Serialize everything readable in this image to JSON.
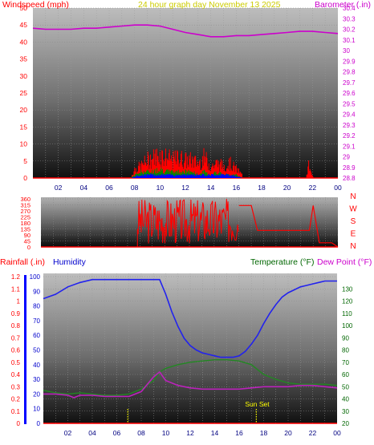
{
  "colors": {
    "windspeed": "#ff0000",
    "gust": "#cc0000",
    "wind_low": "#0000ff",
    "wind_mid": "#008800",
    "barometer": "#cc00cc",
    "rainfall": "#ff0000",
    "humidity": "#0000cc",
    "humidity_curve": "#2222ee",
    "temperature": "#006600",
    "temperature_curve": "#228822",
    "dewpoint": "#cc00cc",
    "dewpoint_curve": "#bb22bb",
    "direction": "#ff0000",
    "sunrise_marker": "#ffff00",
    "title_text": "#cccc00",
    "sunset_text": "#ffff00"
  },
  "chart_data": [
    {
      "type": "line",
      "title": "24 hour graph day   November 13 2025",
      "ylabel_left": "Windspeed (mph)",
      "ylabel_right": "Barometer (.in)",
      "x_ticks": [
        "02",
        "04",
        "06",
        "08",
        "10",
        "12",
        "14",
        "16",
        "18",
        "20",
        "22",
        "00"
      ],
      "ylim_left": [
        0,
        50
      ],
      "y_ticks_left": [
        "50",
        "45",
        "40",
        "35",
        "30",
        "25",
        "20",
        "15",
        "10",
        "5",
        "0"
      ],
      "ylim_right": [
        28.8,
        30.4
      ],
      "y_ticks_right": [
        "30.4",
        "30.3",
        "30.2",
        "30.1",
        "30",
        "29.9",
        "29.8",
        "29.7",
        "29.6",
        "29.5",
        "29.4",
        "29.3",
        "29.2",
        "29.1",
        "29",
        "28.9",
        "28.8"
      ],
      "grid": true,
      "series": [
        {
          "axis": "right",
          "x": [
            0,
            1,
            2,
            3,
            4,
            5,
            6,
            7,
            8,
            9,
            10,
            11,
            12,
            13,
            14,
            15,
            16,
            17,
            18,
            19,
            20,
            21,
            22,
            23,
            24
          ],
          "values": [
            30.21,
            30.2,
            30.2,
            30.2,
            30.21,
            30.21,
            30.22,
            30.23,
            30.24,
            30.24,
            30.23,
            30.2,
            30.17,
            30.15,
            30.13,
            30.13,
            30.14,
            30.14,
            30.15,
            30.16,
            30.17,
            30.18,
            30.18,
            30.17,
            30.16
          ]
        },
        {
          "x": [
            0,
            7.7,
            8.0,
            8.5,
            9.0,
            9.5,
            10.0,
            10.5,
            11.0,
            11.5,
            12.0,
            12.5,
            13.0,
            13.5,
            14.0,
            14.5,
            15.0,
            15.5,
            16.0,
            16.5,
            16.6,
            21.5,
            21.7,
            21.9,
            22.1,
            24
          ],
          "values": [
            0,
            0,
            3,
            4,
            6,
            7,
            8,
            7,
            6,
            7,
            6,
            6,
            5,
            7,
            4,
            5,
            4,
            5,
            3,
            1,
            0,
            0,
            4,
            2,
            0,
            0
          ]
        },
        {
          "x": [
            0,
            7.7,
            8.0,
            8.5,
            9.0,
            9.5,
            10.0,
            10.5,
            11.0,
            11.5,
            12.0,
            12.5,
            13.0,
            13.5,
            14.0,
            14.5,
            15.0,
            15.5,
            16.0,
            16.5,
            16.6,
            24
          ],
          "values": [
            0,
            0,
            1,
            2,
            2,
            2,
            3,
            2,
            2,
            2,
            2,
            2,
            1,
            2,
            1,
            2,
            1,
            1,
            1,
            0,
            0,
            0
          ]
        },
        {
          "x": [
            0,
            7.7,
            8.5,
            9.5,
            10.5,
            11.5,
            12.5,
            13.5,
            14.5,
            15.5,
            16.5,
            24
          ],
          "values": [
            0,
            0,
            1,
            1,
            1,
            1,
            1,
            1,
            1,
            1,
            0,
            0
          ]
        }
      ]
    },
    {
      "type": "line",
      "ylabel_right": "",
      "ylim_left": [
        0,
        360
      ],
      "y_ticks_left": [
        "360",
        "315",
        "270",
        "225",
        "180",
        "135",
        "90",
        "45",
        "0"
      ],
      "direction_labels": [
        "N",
        "W",
        "S",
        "E",
        "N"
      ],
      "series": [
        {
          "x": [
            0,
            7.8,
            16.0,
            17.0,
            17.5,
            21.7,
            22.0,
            22.5,
            23.5,
            24
          ],
          "values": [
            0,
            0,
            300,
            300,
            120,
            120,
            300,
            30,
            30,
            0
          ]
        }
      ],
      "band_start": 7.8,
      "band_end": 16.0
    },
    {
      "type": "line",
      "ylabel_left": "Rainfall (.in)",
      "ylabel_left2": "Humidity",
      "ylabel_right": "Temperature (°F)",
      "ylabel_right2": "Dew Point (°F)",
      "x_ticks": [
        "02",
        "04",
        "06",
        "08",
        "10",
        "12",
        "14",
        "16",
        "18",
        "20",
        "22",
        "00"
      ],
      "ylim_left": [
        0,
        1.2
      ],
      "y_ticks_left": [
        "1.2",
        "1.1",
        "1",
        "0.9",
        "0.8",
        "0.7",
        "0.6",
        "0.5",
        "0.4",
        "0.3",
        "0.2",
        "0.1",
        "0"
      ],
      "y_ticks_humidity": [
        "100",
        "90",
        "80",
        "70",
        "60",
        "50",
        "40",
        "30",
        "20",
        "10",
        "0"
      ],
      "ylim_right": [
        20,
        140
      ],
      "y_ticks_right": [
        "130",
        "120",
        "110",
        "100",
        "90",
        "80",
        "70",
        "60",
        "50",
        "40",
        "30",
        "20"
      ],
      "annotation": "Sun Set",
      "sunrise_x": 6.9,
      "sunset_x": 17.4,
      "grid": true,
      "series": [
        {
          "name": "Humidity",
          "axis": "humidity",
          "x": [
            0,
            1,
            2,
            3,
            4,
            5,
            6,
            7,
            8,
            9,
            9.5,
            10,
            10.5,
            11,
            11.5,
            12,
            12.5,
            13,
            13.5,
            14,
            14.5,
            15,
            15.5,
            16,
            16.5,
            17,
            17.5,
            18,
            18.5,
            19,
            19.5,
            20,
            20.5,
            21,
            21.5,
            22,
            22.5,
            23,
            24
          ],
          "values": [
            85,
            88,
            93,
            96,
            98,
            98,
            98,
            98,
            98,
            98,
            98,
            88,
            76,
            66,
            58,
            53,
            50,
            48,
            47,
            46,
            45,
            45,
            45,
            46,
            49,
            54,
            60,
            68,
            75,
            81,
            86,
            89,
            91,
            93,
            94,
            95,
            96,
            97,
            97
          ]
        },
        {
          "name": "Temperature (°F)",
          "axis": "right",
          "x": [
            0,
            1,
            2,
            3,
            4,
            5,
            6,
            7,
            8,
            9,
            9.5,
            10,
            11,
            12,
            13,
            14,
            15,
            16,
            17,
            17.5,
            18,
            19,
            20,
            21,
            22,
            23,
            24
          ],
          "values": [
            47,
            45,
            44,
            45,
            44,
            43,
            43,
            44,
            48,
            55,
            62,
            65,
            68,
            70,
            71,
            72,
            72,
            71,
            68,
            64,
            60,
            56,
            53,
            52,
            52,
            52,
            51
          ]
        },
        {
          "name": "Dew Point (°F)",
          "axis": "right",
          "x": [
            0,
            1,
            2,
            2.5,
            3,
            4,
            5,
            6,
            7,
            8,
            9,
            9.5,
            10,
            11,
            12,
            13,
            14,
            15,
            16,
            17,
            18,
            19,
            20,
            21,
            22,
            23,
            24
          ],
          "values": [
            44,
            44,
            43,
            41,
            43,
            43,
            42,
            42,
            42,
            46,
            58,
            62,
            55,
            51,
            49,
            48,
            48,
            48,
            48,
            49,
            50,
            50,
            50,
            51,
            51,
            50,
            49
          ]
        },
        {
          "name": "Rainfall (.in)",
          "axis": "left",
          "x": [
            0,
            24
          ],
          "values": [
            0,
            0
          ]
        }
      ]
    }
  ]
}
